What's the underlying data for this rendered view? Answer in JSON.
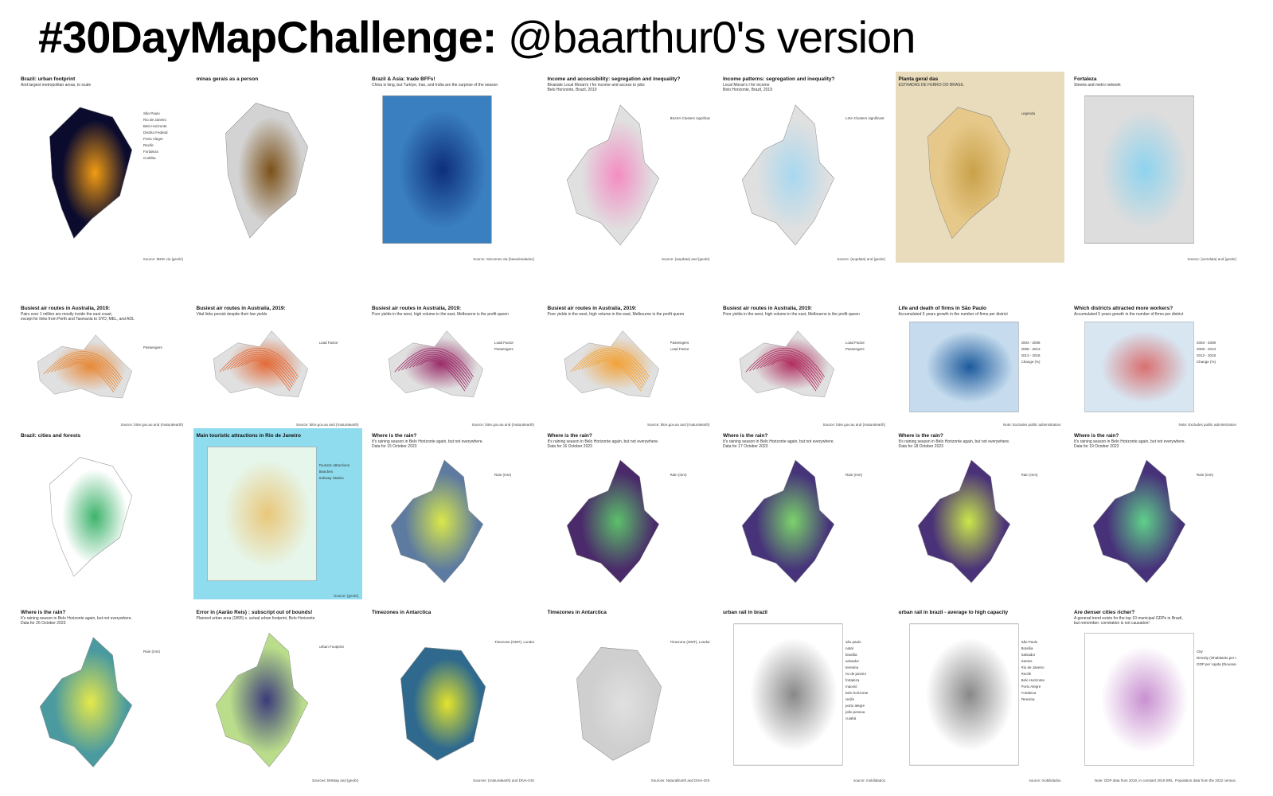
{
  "header": {
    "title_bold": "#30DayMapChallenge:",
    "title_rest": "@baarthur0's version"
  },
  "panels": [
    {
      "title": "Brazil: urban footprint",
      "lines": [
        "And largest metropolitan areas, to scale"
      ],
      "labels": [
        "São Paulo",
        "Rio de Janeiro",
        "Belo Horizonte",
        "Distrito Federal",
        "Porto Alegre",
        "Recife",
        "Fortaleza",
        "Curitiba"
      ],
      "source": "Source: IBGE via {geobr}"
    },
    {
      "title": "minas gerais as a person"
    },
    {
      "title": "Brazil & Asia: trade BFFs!",
      "lines": [
        "China is king, but Turkiye, Iran, and India are the surprise of the season"
      ],
      "source": "Source: Siscomex via {basedosdados}"
    },
    {
      "title": "Income and accessibility: segregation and inequality?",
      "lines": [
        "Bivariate Local Moran's I for income and access to jobs",
        "Belo Horizonte, Brazil, 2019"
      ],
      "labels": [
        "BILISA Clusters significant at 5%"
      ],
      "source": "Source: {aopdata} and {geobr}"
    },
    {
      "title": "Income patterns: segregation and inequality?",
      "lines": [
        "Local Moran's I for income",
        "Belo Horizonte, Brazil, 2019"
      ],
      "labels": [
        "LISA Clusters significant at 5%"
      ],
      "source": "Source: {aopdata} and {geobr}"
    },
    {
      "title": "Planta geral das",
      "lines": [
        "ESTRADAS DE FERRO DO BRASIL"
      ],
      "labels": [
        "Legenda"
      ]
    },
    {
      "title": "Fortaleza",
      "lines": [
        "Streets and metro network"
      ],
      "source": "Source: {osmdata} and {geobr}"
    },
    {
      "title": "Busiest air routes in Australia, 2019:",
      "lines": [
        "Pairs over 1 million are mostly inside the east coast,",
        "except for links from Perth and Tasmania to SYD, MEL, and ADL"
      ],
      "labels": [
        "Passengers"
      ],
      "source": "Source: bitre.gov.au and {rnaturalearth}"
    },
    {
      "title": "Busiest air routes in Australia, 2019:",
      "lines": [
        "Vital links persist despite their low yields"
      ],
      "labels": [
        "Load Factor"
      ],
      "source": "Source: bitre.gov.au and {rnaturalearth}"
    },
    {
      "title": "Busiest air routes in Australia, 2019:",
      "lines": [
        "Poor yields in the west, high volume in the east, Melbourne is the profit queen"
      ],
      "labels": [
        "Load Factor",
        "Passengers"
      ],
      "source": "Source: bitre.gov.au and {rnaturalearth}"
    },
    {
      "title": "Busiest air routes in Australia, 2019:",
      "lines": [
        "Poor yields in the west, high volume in the east, Melbourne is the profit queen"
      ],
      "labels": [
        "Passengers",
        "Load Factor"
      ],
      "source": "Source: bitre.gov.au and {rnaturalearth}"
    },
    {
      "title": "Busiest air routes in Australia, 2019:",
      "lines": [
        "Poor yields in the west, high volume in the east, Melbourne is the profit queen"
      ],
      "labels": [
        "Load Factor",
        "Passengers"
      ],
      "source": "Source: bitre.gov.au and {rnaturalearth}"
    },
    {
      "title": "Life and death of firms in São Paulo",
      "lines": [
        "Accumulated 5 years growth in the number of firms per district"
      ],
      "labels": [
        "2003 - 2008",
        "2008 - 2013",
        "2013 - 2018",
        "Change (%)"
      ],
      "source": "Note: Excludes public administration"
    },
    {
      "title": "Which districts attracted more workers?",
      "lines": [
        "Accumulated 5 years growth in the number of firms per district"
      ],
      "labels": [
        "2003 - 2008",
        "2008 - 2013",
        "2013 - 2018",
        "Change (%)"
      ],
      "source": "Note: Excludes public administration"
    },
    {
      "title": "Brazil: cities and forests"
    },
    {
      "title": "Main touristic attractions in Rio de Janeiro",
      "labels": [
        "Touristic attractions",
        "Beaches",
        "Subway Station"
      ],
      "source": "Source: {geobr}"
    },
    {
      "title": "Where is the rain?",
      "lines": [
        "It's raining season in Belo Horizonte again, but not everywhere.",
        "Data for 15 October 2023"
      ],
      "labels": [
        "Rain (mm)"
      ]
    },
    {
      "title": "Where is the rain?",
      "lines": [
        "It's raining season in Belo Horizonte again, but not everywhere.",
        "Data for 16 October 2023"
      ],
      "labels": [
        "Rain (mm)"
      ]
    },
    {
      "title": "Where is the rain?",
      "lines": [
        "It's raining season in Belo Horizonte again, but not everywhere.",
        "Data for 17 October 2023"
      ],
      "labels": [
        "Rain (mm)"
      ]
    },
    {
      "title": "Where is the rain?",
      "lines": [
        "It's raining season in Belo Horizonte again, but not everywhere.",
        "Data for 18 October 2023"
      ],
      "labels": [
        "Rain (mm)"
      ]
    },
    {
      "title": "Where is the rain?",
      "lines": [
        "It's raining season in Belo Horizonte again, but not everywhere.",
        "Data for 19 October 2023"
      ],
      "labels": [
        "Rain (mm)"
      ]
    },
    {
      "title": "Where is the rain?",
      "lines": [
        "It's raining season in Belo Horizonte again, but not everywhere.",
        "Data for 26 October 2023"
      ],
      "labels": [
        "Rain (mm)"
      ]
    },
    {
      "title": "Error in (Aarão Reis) : subscript out of bounds!",
      "lines": [
        "Planned urban area (1895) x. actual urban footprint, Belo Horizonte"
      ],
      "labels": [
        "Urban Footprint"
      ],
      "source": "Sources: BHMap and {geobr}"
    },
    {
      "title": "Timezones in Antarctica",
      "labels": [
        "Timezone (GMT), London = 0"
      ],
      "source": "Sources: {rnaturalearth} and DIVA-GIS"
    },
    {
      "title": "Timezones in Antarctica",
      "labels": [
        "Timezone (GMT), London = 0"
      ],
      "source": "Sources: NaturalEarth and DIVA-GIS"
    },
    {
      "title": "urban rail in brazil",
      "labels": [
        "são paulo",
        "natal",
        "brasília",
        "salvador",
        "teresina",
        "rio de janeiro",
        "fortaleza",
        "maceió",
        "belo horizonte",
        "recife",
        "porto alegre",
        "joão pessoa",
        "cuiabá"
      ],
      "source": "source: mobilidados"
    },
    {
      "title": "urban rail in brazil - average to high capacity",
      "labels": [
        "São Paulo",
        "Brasília",
        "Salvador",
        "Santos",
        "Rio de Janeiro",
        "Recife",
        "Belo Horizonte",
        "Porto Alegre",
        "Fortaleza",
        "Teresina"
      ],
      "source": "source: mobilidados"
    },
    {
      "title": "Are denser cities richer?",
      "lines": [
        "A general trend exists for the top 10 municipal GDPs in Brazil,",
        "but remember: correlation is not causation!"
      ],
      "labels": [
        "City",
        "Density (inhabitants per sq. km)",
        "GDP per capita (thousands)"
      ],
      "source": "Note: GDP data from 2019, in constant 2019 BRL. Population data from the 2022 census."
    }
  ]
}
